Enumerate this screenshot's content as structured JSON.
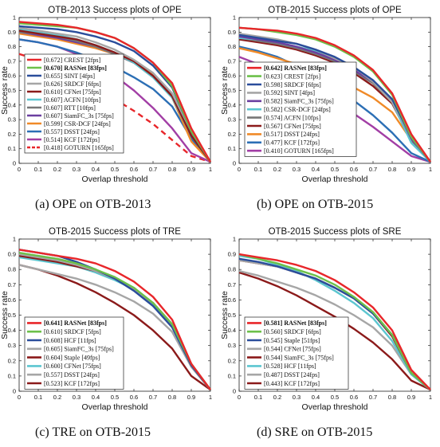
{
  "captions": {
    "a": "(a)  OPE on OTB-2013",
    "b": "(b)  OPE on OTB-2015",
    "c": "(c)  TRE on OTB-2015",
    "d": "(d)  SRE on OTB-2015"
  },
  "chart_data": [
    {
      "type": "line",
      "title": "OTB-2013  Success plots of OPE",
      "xlabel": "Overlap threshold",
      "ylabel": "Success rate",
      "xlim": [
        0,
        1
      ],
      "ylim": [
        0,
        1
      ],
      "xticks": [
        "0",
        "0.1",
        "0.2",
        "0.3",
        "0.4",
        "0.5",
        "0.6",
        "0.7",
        "0.8",
        "0.9",
        "1"
      ],
      "yticks": [
        "0",
        "0.1",
        "0.2",
        "0.3",
        "0.4",
        "0.5",
        "0.6",
        "0.7",
        "0.8",
        "0.9",
        "1"
      ],
      "grid": false,
      "legend_position": "middle-left",
      "series": [
        {
          "name": "[0.672] CREST [2fps]",
          "color": "#e8262a",
          "style": "solid",
          "bold": false,
          "y": [
            0.97,
            0.96,
            0.95,
            0.93,
            0.9,
            0.86,
            0.79,
            0.69,
            0.55,
            0.24,
            0.01
          ]
        },
        {
          "name": "[0.670] RASNet [83fps]",
          "color": "#6cc04a",
          "style": "solid",
          "bold": true,
          "y": [
            0.96,
            0.95,
            0.94,
            0.93,
            0.9,
            0.86,
            0.79,
            0.69,
            0.53,
            0.22,
            0.01
          ]
        },
        {
          "name": "[0.655] SINT [4fps]",
          "color": "#2a4d9b",
          "style": "solid",
          "bold": false,
          "y": [
            0.94,
            0.93,
            0.92,
            0.9,
            0.87,
            0.83,
            0.77,
            0.67,
            0.52,
            0.22,
            0.01
          ]
        },
        {
          "name": "[0.626] SRDCF [6fps]",
          "color": "#a6a6a6",
          "style": "solid",
          "bold": false,
          "y": [
            0.93,
            0.91,
            0.89,
            0.87,
            0.83,
            0.78,
            0.71,
            0.62,
            0.48,
            0.22,
            0.01
          ]
        },
        {
          "name": "[0.610] CFNet [75fps]",
          "color": "#8b1a1a",
          "style": "solid",
          "bold": false,
          "y": [
            0.91,
            0.89,
            0.87,
            0.85,
            0.81,
            0.76,
            0.7,
            0.6,
            0.46,
            0.19,
            0.01
          ]
        },
        {
          "name": "[0.607] ACFN [10fps]",
          "color": "#5cc6d0",
          "style": "solid",
          "bold": false,
          "y": [
            0.92,
            0.9,
            0.88,
            0.85,
            0.81,
            0.76,
            0.69,
            0.59,
            0.45,
            0.19,
            0.01
          ]
        },
        {
          "name": "[0.607] RTT [10fps]",
          "color": "#777777",
          "style": "solid",
          "bold": false,
          "y": [
            0.9,
            0.89,
            0.87,
            0.84,
            0.8,
            0.75,
            0.69,
            0.59,
            0.46,
            0.2,
            0.01
          ]
        },
        {
          "name": "[0.607] SiamFC_3s [75fps]",
          "color": "#6b3fa0",
          "style": "solid",
          "bold": false,
          "y": [
            0.9,
            0.88,
            0.86,
            0.83,
            0.8,
            0.75,
            0.69,
            0.6,
            0.47,
            0.2,
            0.01
          ]
        },
        {
          "name": "[0.599] CSR-DCF [24fps]",
          "color": "#f08a28",
          "style": "solid",
          "bold": false,
          "y": [
            0.89,
            0.87,
            0.85,
            0.82,
            0.79,
            0.75,
            0.7,
            0.61,
            0.45,
            0.15,
            0.01
          ]
        },
        {
          "name": "[0.557] DSST [24fps]",
          "color": "#2c6fb5",
          "style": "solid",
          "bold": false,
          "y": [
            0.85,
            0.83,
            0.8,
            0.76,
            0.71,
            0.66,
            0.59,
            0.51,
            0.39,
            0.17,
            0.01
          ]
        },
        {
          "name": "[0.514] KCF [172fps]",
          "color": "#a23ea5",
          "style": "solid",
          "bold": false,
          "y": [
            0.85,
            0.83,
            0.8,
            0.75,
            0.68,
            0.6,
            0.5,
            0.38,
            0.24,
            0.07,
            0.01
          ]
        },
        {
          "name": "[0.418] GOTURN [165fps]",
          "color": "#e8262a",
          "style": "dashed",
          "bold": false,
          "y": [
            0.75,
            0.71,
            0.66,
            0.6,
            0.52,
            0.44,
            0.36,
            0.27,
            0.16,
            0.05,
            0.01
          ]
        }
      ]
    },
    {
      "type": "line",
      "title": "OTB-2015  Success plots of OPE",
      "xlabel": "Overlap threshold",
      "ylabel": "Success rate",
      "xlim": [
        0,
        1
      ],
      "ylim": [
        0,
        1
      ],
      "xticks": [
        "0",
        "0.1",
        "0.2",
        "0.3",
        "0.4",
        "0.5",
        "0.6",
        "0.7",
        "0.8",
        "0.9",
        "1"
      ],
      "yticks": [
        "0",
        "0.1",
        "0.2",
        "0.3",
        "0.4",
        "0.5",
        "0.6",
        "0.7",
        "0.8",
        "0.9",
        "1"
      ],
      "grid": false,
      "legend_position": "middle-left",
      "series": [
        {
          "name": "[0.642] RASNet [83fps]",
          "color": "#e8262a",
          "style": "solid",
          "bold": true,
          "y": [
            0.93,
            0.92,
            0.91,
            0.89,
            0.86,
            0.81,
            0.74,
            0.64,
            0.48,
            0.2,
            0.01
          ]
        },
        {
          "name": "[0.623] CREST [2fps]",
          "color": "#6cc04a",
          "style": "solid",
          "bold": false,
          "y": [
            0.93,
            0.92,
            0.9,
            0.88,
            0.85,
            0.8,
            0.73,
            0.63,
            0.47,
            0.18,
            0.01
          ]
        },
        {
          "name": "[0.598] SRDCF [6fps]",
          "color": "#2a4d9b",
          "style": "solid",
          "bold": false,
          "y": [
            0.88,
            0.86,
            0.84,
            0.82,
            0.78,
            0.73,
            0.66,
            0.57,
            0.44,
            0.18,
            0.01
          ]
        },
        {
          "name": "[0.592] SINT [4fps]",
          "color": "#a6a6a6",
          "style": "solid",
          "bold": false,
          "y": [
            0.89,
            0.87,
            0.85,
            0.82,
            0.78,
            0.72,
            0.66,
            0.56,
            0.42,
            0.18,
            0.01
          ]
        },
        {
          "name": "[0.582] SiamFC_3s [75fps]",
          "color": "#6b3fa0",
          "style": "solid",
          "bold": false,
          "y": [
            0.87,
            0.85,
            0.83,
            0.8,
            0.76,
            0.71,
            0.64,
            0.56,
            0.43,
            0.17,
            0.01
          ]
        },
        {
          "name": "[0.582] CSR-DCF [24fps]",
          "color": "#5cc6d0",
          "style": "solid",
          "bold": false,
          "y": [
            0.86,
            0.85,
            0.83,
            0.8,
            0.77,
            0.72,
            0.66,
            0.57,
            0.42,
            0.14,
            0.01
          ]
        },
        {
          "name": "[0.574] ACFN [10fps]",
          "color": "#777777",
          "style": "solid",
          "bold": false,
          "y": [
            0.86,
            0.84,
            0.82,
            0.79,
            0.75,
            0.7,
            0.63,
            0.55,
            0.42,
            0.16,
            0.01
          ]
        },
        {
          "name": "[0.567] CFNet [75fps]",
          "color": "#8b1a1a",
          "style": "solid",
          "bold": false,
          "y": [
            0.85,
            0.83,
            0.81,
            0.78,
            0.74,
            0.69,
            0.62,
            0.53,
            0.41,
            0.16,
            0.01
          ]
        },
        {
          "name": "[0.517] DSST [24fps]",
          "color": "#f08a28",
          "style": "solid",
          "bold": false,
          "y": [
            0.79,
            0.76,
            0.72,
            0.68,
            0.63,
            0.58,
            0.52,
            0.45,
            0.35,
            0.16,
            0.01
          ]
        },
        {
          "name": "[0.477] KCF [172fps]",
          "color": "#2c6fb5",
          "style": "solid",
          "bold": false,
          "y": [
            0.8,
            0.77,
            0.73,
            0.67,
            0.6,
            0.52,
            0.43,
            0.33,
            0.21,
            0.07,
            0.01
          ]
        },
        {
          "name": "[0.410] GOTURN [165fps]",
          "color": "#a23ea5",
          "style": "solid",
          "bold": false,
          "y": [
            0.73,
            0.68,
            0.63,
            0.57,
            0.5,
            0.42,
            0.34,
            0.25,
            0.15,
            0.05,
            0.01
          ]
        }
      ]
    },
    {
      "type": "line",
      "title": "OTB-2015  Success plots of TRE",
      "xlabel": "Overlap threshold",
      "ylabel": "Success rate",
      "xlim": [
        0,
        1
      ],
      "ylim": [
        0,
        1
      ],
      "xticks": [
        "0",
        "0.1",
        "0.2",
        "0.3",
        "0.4",
        "0.5",
        "0.6",
        "0.7",
        "0.8",
        "0.9",
        "1"
      ],
      "yticks": [
        "0",
        "0.1",
        "0.2",
        "0.3",
        "0.4",
        "0.5",
        "0.6",
        "0.7",
        "0.8",
        "0.9",
        "1"
      ],
      "grid": false,
      "legend_position": "bottom-left",
      "series": [
        {
          "name": "[0.641] RASNet [83fps]",
          "color": "#e8262a",
          "style": "solid",
          "bold": true,
          "y": [
            0.93,
            0.91,
            0.89,
            0.87,
            0.84,
            0.79,
            0.72,
            0.62,
            0.47,
            0.18,
            0.01
          ]
        },
        {
          "name": "[0.610] SRDCF [5fps]",
          "color": "#6cc04a",
          "style": "solid",
          "bold": false,
          "y": [
            0.91,
            0.89,
            0.87,
            0.84,
            0.8,
            0.75,
            0.68,
            0.58,
            0.44,
            0.18,
            0.01
          ]
        },
        {
          "name": "[0.608] HCF [11fps]",
          "color": "#2a4d9b",
          "style": "solid",
          "bold": false,
          "y": [
            0.93,
            0.91,
            0.89,
            0.85,
            0.8,
            0.74,
            0.66,
            0.56,
            0.42,
            0.17,
            0.01
          ]
        },
        {
          "name": "[0.605] SiamFC_3s [75fps]",
          "color": "#a6a6a6",
          "style": "solid",
          "bold": false,
          "y": [
            0.9,
            0.88,
            0.86,
            0.83,
            0.79,
            0.74,
            0.67,
            0.58,
            0.44,
            0.17,
            0.01
          ]
        },
        {
          "name": "[0.604] Staple [49fps]",
          "color": "#8b1a1a",
          "style": "solid",
          "bold": false,
          "y": [
            0.89,
            0.87,
            0.85,
            0.82,
            0.79,
            0.74,
            0.67,
            0.58,
            0.44,
            0.17,
            0.01
          ]
        },
        {
          "name": "[0.600] CFNet [75fps]",
          "color": "#5cc6d0",
          "style": "solid",
          "bold": false,
          "y": [
            0.88,
            0.86,
            0.84,
            0.82,
            0.78,
            0.73,
            0.67,
            0.57,
            0.44,
            0.17,
            0.01
          ]
        },
        {
          "name": "[0.557] DSST [24fps]",
          "color": "#a6a6a6",
          "style": "solid",
          "bold": false,
          "y": [
            0.83,
            0.8,
            0.77,
            0.74,
            0.7,
            0.65,
            0.59,
            0.51,
            0.39,
            0.16,
            0.01
          ]
        },
        {
          "name": "[0.523] KCF [172fps]",
          "color": "#8b1a1a",
          "style": "solid",
          "bold": false,
          "y": [
            0.83,
            0.8,
            0.76,
            0.71,
            0.65,
            0.58,
            0.5,
            0.4,
            0.28,
            0.1,
            0.01
          ]
        }
      ]
    },
    {
      "type": "line",
      "title": "OTB-2015  Success plots of SRE",
      "xlabel": "Overlap threshold",
      "ylabel": "Success rate",
      "xlim": [
        0,
        1
      ],
      "ylim": [
        0,
        1
      ],
      "xticks": [
        "0",
        "0.1",
        "0.2",
        "0.3",
        "0.4",
        "0.5",
        "0.6",
        "0.7",
        "0.8",
        "0.9",
        "1"
      ],
      "yticks": [
        "0",
        "0.1",
        "0.2",
        "0.3",
        "0.4",
        "0.5",
        "0.6",
        "0.7",
        "0.8",
        "0.9",
        "1"
      ],
      "grid": false,
      "legend_position": "bottom-left",
      "series": [
        {
          "name": "[0.581] RASNet [83fps]",
          "color": "#e8262a",
          "style": "solid",
          "bold": true,
          "y": [
            0.9,
            0.88,
            0.86,
            0.83,
            0.79,
            0.73,
            0.65,
            0.55,
            0.4,
            0.14,
            0.01
          ]
        },
        {
          "name": "[0.560] SRDCF [6fps]",
          "color": "#6cc04a",
          "style": "solid",
          "bold": false,
          "y": [
            0.9,
            0.87,
            0.84,
            0.8,
            0.76,
            0.7,
            0.62,
            0.52,
            0.37,
            0.12,
            0.01
          ]
        },
        {
          "name": "[0.545] Staple [51fps]",
          "color": "#2a4d9b",
          "style": "solid",
          "bold": false,
          "y": [
            0.87,
            0.85,
            0.82,
            0.78,
            0.74,
            0.68,
            0.61,
            0.51,
            0.37,
            0.12,
            0.01
          ]
        },
        {
          "name": "[0.544] CFNet [75fps]",
          "color": "#a6a6a6",
          "style": "solid",
          "bold": false,
          "y": [
            0.86,
            0.84,
            0.82,
            0.78,
            0.74,
            0.68,
            0.61,
            0.51,
            0.37,
            0.12,
            0.01
          ]
        },
        {
          "name": "[0.544] SiamFC_3s [75fps]",
          "color": "#8b1a1a",
          "style": "solid",
          "bold": false,
          "y": [
            0.86,
            0.84,
            0.82,
            0.78,
            0.74,
            0.68,
            0.61,
            0.51,
            0.36,
            0.12,
            0.01
          ]
        },
        {
          "name": "[0.528] HCF [11fps]",
          "color": "#5cc6d0",
          "style": "solid",
          "bold": false,
          "y": [
            0.89,
            0.87,
            0.83,
            0.79,
            0.73,
            0.66,
            0.58,
            0.48,
            0.33,
            0.11,
            0.01
          ]
        },
        {
          "name": "[0.487] DSST [24fps]",
          "color": "#a6a6a6",
          "style": "solid",
          "bold": false,
          "y": [
            0.79,
            0.76,
            0.72,
            0.68,
            0.63,
            0.57,
            0.5,
            0.42,
            0.3,
            0.11,
            0.01
          ]
        },
        {
          "name": "[0.443] KCF [172fps]",
          "color": "#8b1a1a",
          "style": "solid",
          "bold": false,
          "y": [
            0.78,
            0.74,
            0.69,
            0.63,
            0.56,
            0.49,
            0.41,
            0.32,
            0.21,
            0.07,
            0.01
          ]
        }
      ]
    }
  ]
}
